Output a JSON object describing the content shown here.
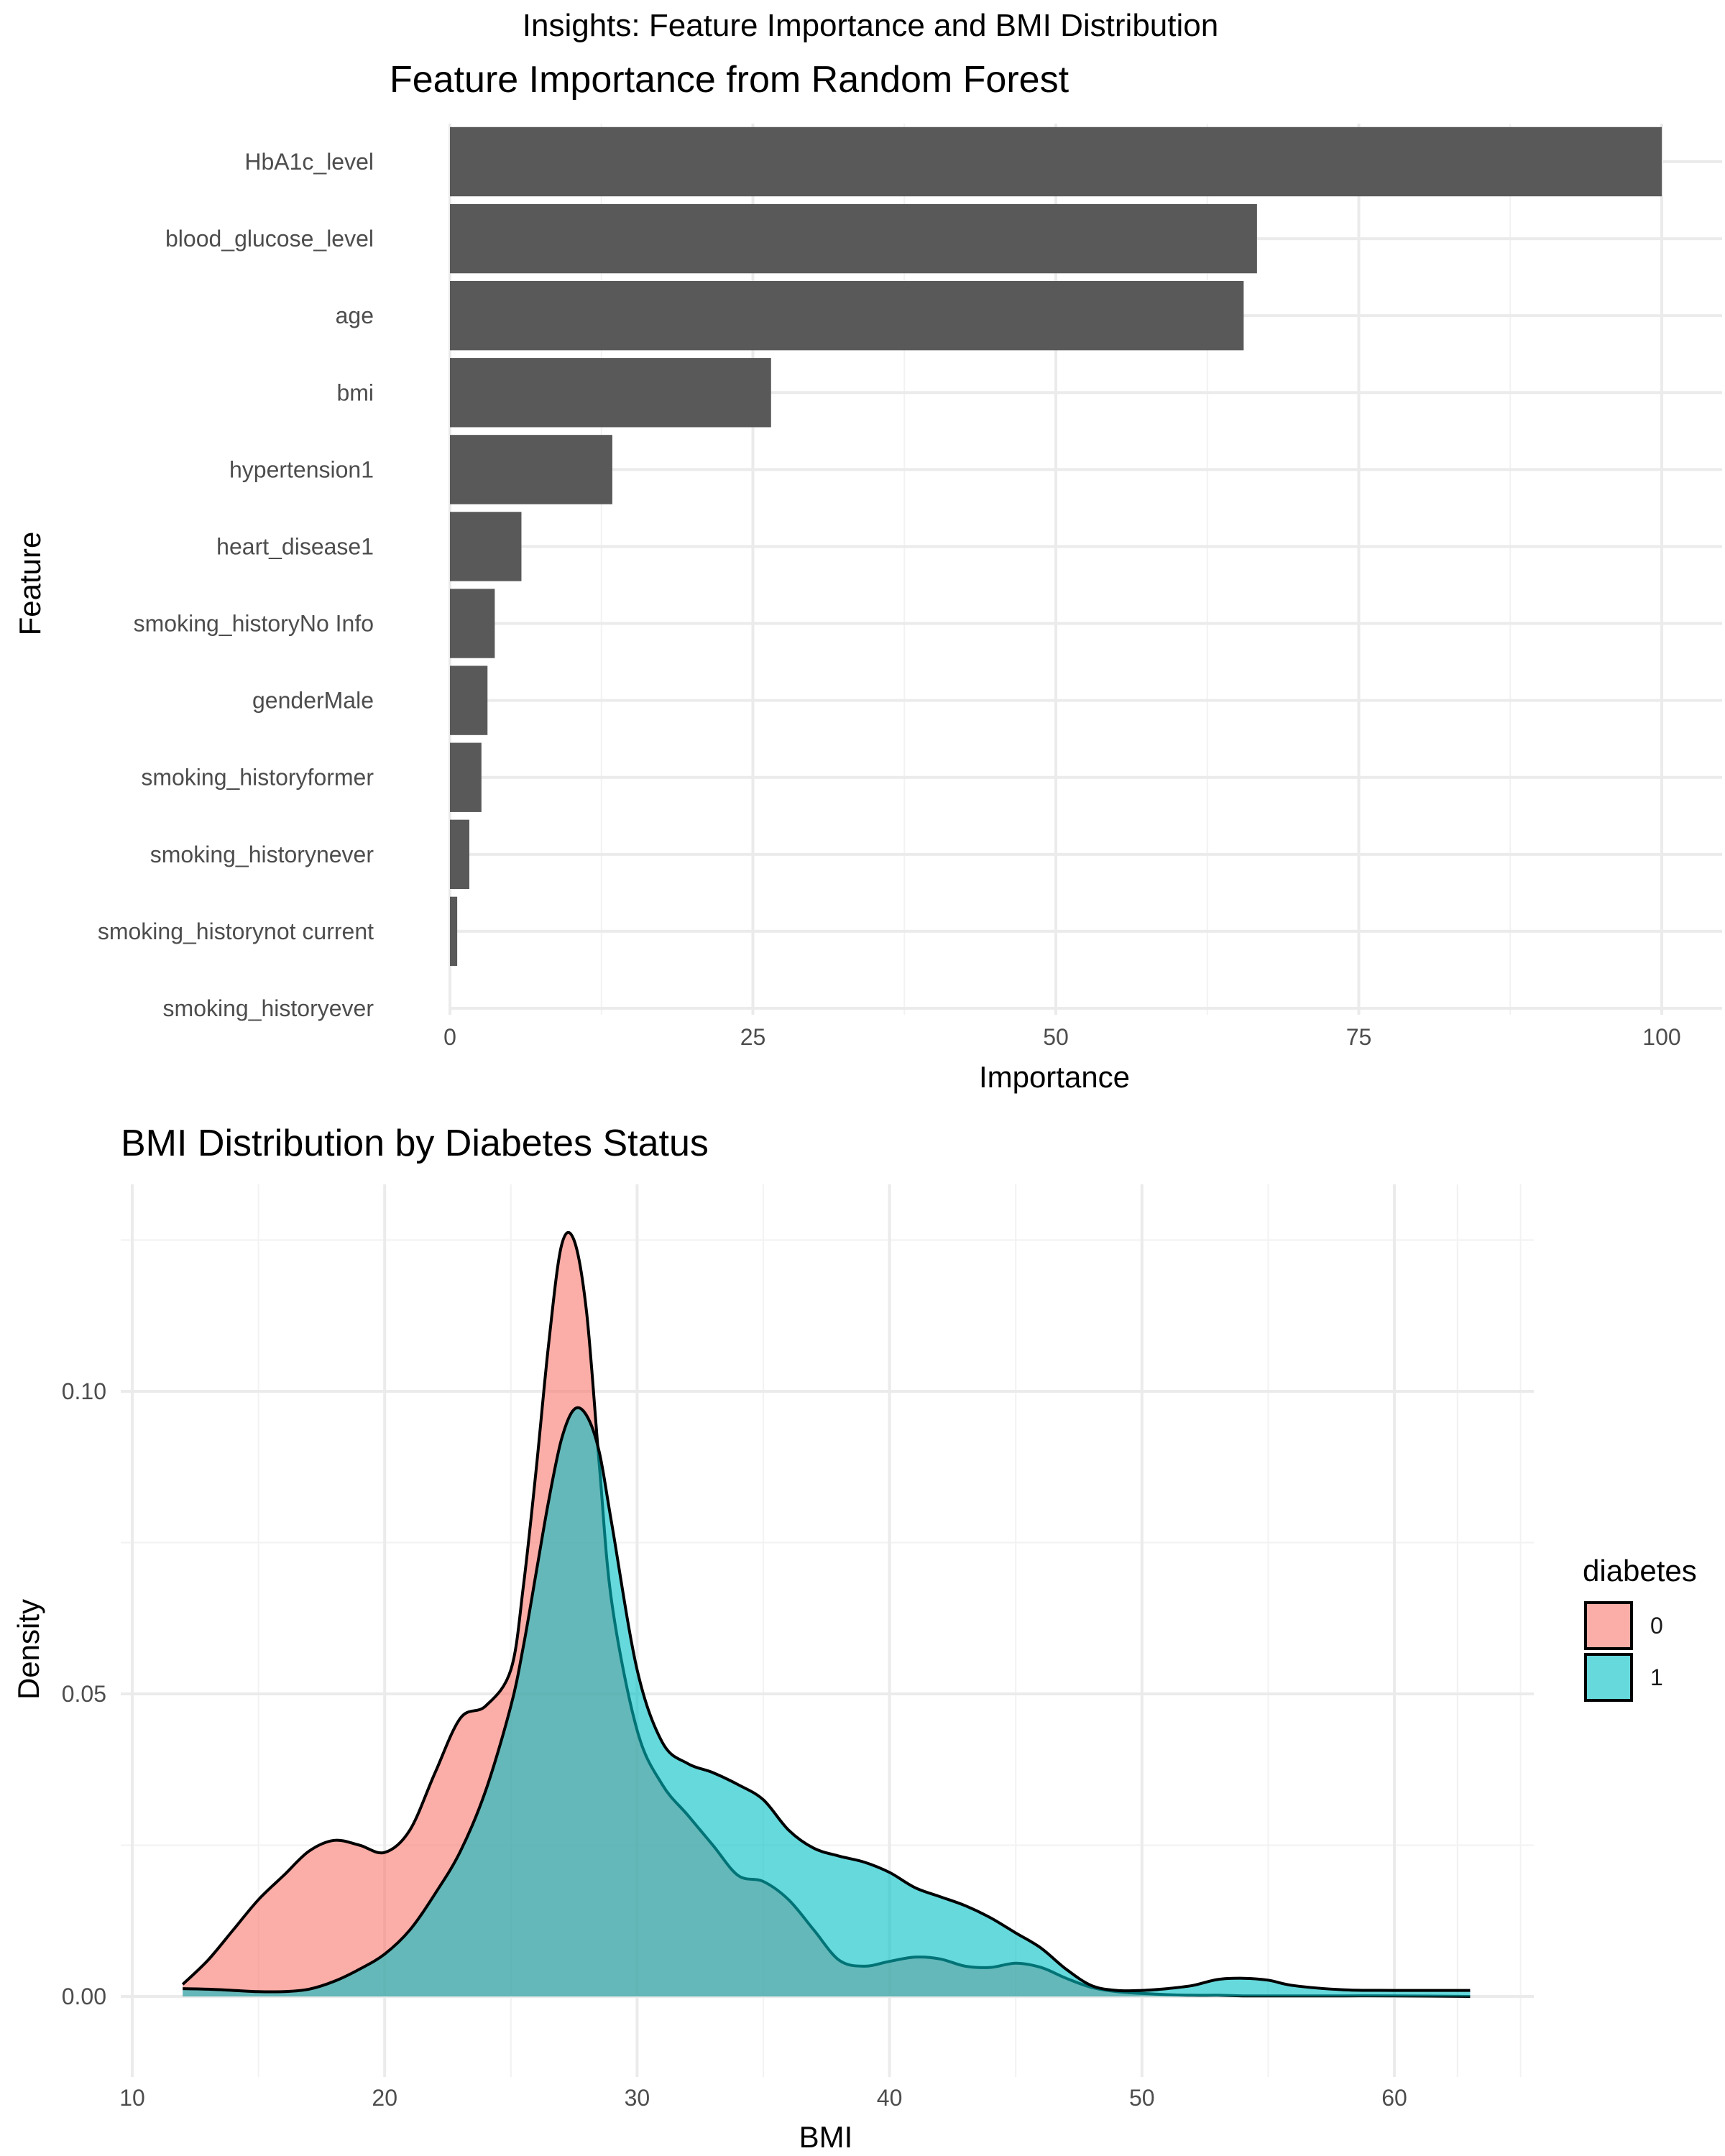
{
  "figure": {
    "suptitle": "Insights: Feature Importance and BMI Distribution"
  },
  "chart_data": [
    {
      "type": "bar",
      "orientation": "horizontal",
      "title": "Feature Importance from Random Forest",
      "xlabel": "Importance",
      "ylabel": "Feature",
      "xlim": [
        0,
        100
      ],
      "xticks": [
        0,
        25,
        50,
        75,
        100
      ],
      "grid": true,
      "bar_color": "#595959",
      "categories": [
        "HbA1c_level",
        "blood_glucose_level",
        "age",
        "bmi",
        "hypertension1",
        "heart_disease1",
        "smoking_historyNo Info",
        "genderMale",
        "smoking_historyformer",
        "smoking_historynever",
        "smoking_historynot current",
        "smoking_historyever"
      ],
      "values": [
        100,
        66.6,
        65.5,
        26.5,
        13.4,
        5.9,
        3.7,
        3.1,
        2.6,
        1.6,
        0.6,
        0
      ]
    },
    {
      "type": "area",
      "subtype": "density",
      "title": "BMI Distribution by Diabetes Status",
      "xlabel": "BMI",
      "ylabel": "Density",
      "xlim": [
        10,
        65
      ],
      "ylim": [
        0,
        0.125
      ],
      "xticks": [
        10,
        20,
        30,
        40,
        50,
        60
      ],
      "yticks": [
        0.0,
        0.05,
        0.1
      ],
      "ytick_labels": [
        "0.00",
        "0.05",
        "0.10"
      ],
      "grid": true,
      "legend": {
        "title": "diabetes",
        "position": "right"
      },
      "x": [
        12,
        13,
        14,
        15,
        16,
        17,
        18,
        19,
        20,
        21,
        22,
        23,
        24,
        25,
        25.5,
        26,
        26.5,
        27,
        27.5,
        28,
        28.5,
        29,
        30,
        31,
        32,
        33,
        34,
        35,
        36,
        37,
        38,
        39,
        40,
        41,
        42,
        43,
        44,
        45,
        46,
        47,
        48,
        49,
        50,
        51,
        52,
        53,
        54,
        55,
        56,
        58,
        60,
        63
      ],
      "series": [
        {
          "name": "0",
          "color": "#F8766D",
          "values": [
            0.002,
            0.006,
            0.011,
            0.016,
            0.02,
            0.024,
            0.0258,
            0.025,
            0.0238,
            0.0275,
            0.037,
            0.046,
            0.048,
            0.054,
            0.068,
            0.087,
            0.108,
            0.124,
            0.125,
            0.113,
            0.088,
            0.065,
            0.044,
            0.035,
            0.03,
            0.025,
            0.02,
            0.019,
            0.016,
            0.011,
            0.006,
            0.005,
            0.0058,
            0.0065,
            0.0062,
            0.005,
            0.0048,
            0.0055,
            0.0048,
            0.003,
            0.0015,
            0.0008,
            0.0005,
            0.0003,
            0.0002,
            0.0002,
            0.0001,
            0.0001,
            0.0001,
            0.0001,
            0.0001,
            0.0
          ]
        },
        {
          "name": "1",
          "color": "#00BFC4",
          "values": [
            0.0013,
            0.0012,
            0.001,
            0.0008,
            0.0008,
            0.0012,
            0.0025,
            0.0045,
            0.007,
            0.011,
            0.017,
            0.024,
            0.034,
            0.048,
            0.058,
            0.07,
            0.082,
            0.092,
            0.097,
            0.096,
            0.09,
            0.078,
            0.054,
            0.042,
            0.0385,
            0.037,
            0.035,
            0.0325,
            0.0275,
            0.0245,
            0.0232,
            0.0222,
            0.0205,
            0.018,
            0.0165,
            0.015,
            0.013,
            0.0105,
            0.008,
            0.0045,
            0.0018,
            0.001,
            0.001,
            0.0013,
            0.0018,
            0.0028,
            0.003,
            0.0027,
            0.0018,
            0.0011,
            0.001,
            0.001
          ]
        }
      ]
    }
  ]
}
